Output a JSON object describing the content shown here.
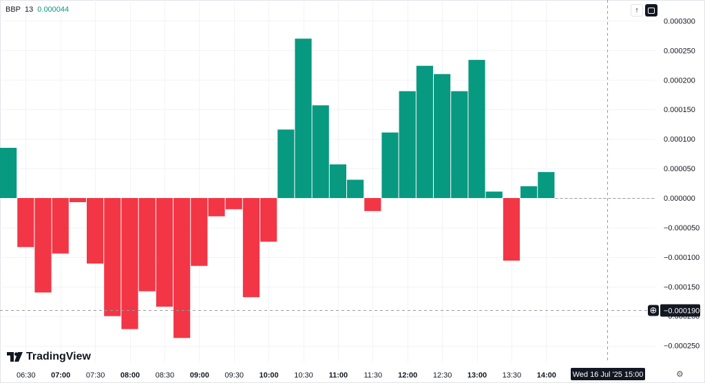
{
  "legend": {
    "symbol": "BBP",
    "period": "13",
    "value": "0.000044"
  },
  "brand": {
    "logo_text": "TradingView",
    "up_color": "#089981",
    "down_color": "#f23645"
  },
  "crosshair": {
    "price_label": "−0.000190",
    "time_label": "Wed 16 Jul '25   15:00"
  },
  "chart_data": {
    "type": "bar",
    "categories": [
      "06:15",
      "06:30",
      "06:45",
      "07:00",
      "07:15",
      "07:30",
      "07:45",
      "08:00",
      "08:15",
      "08:30",
      "08:45",
      "09:00",
      "09:15",
      "09:30",
      "09:45",
      "10:00",
      "10:15",
      "10:30",
      "10:45",
      "11:00",
      "11:15",
      "11:30",
      "11:45",
      "12:00",
      "12:15",
      "12:30",
      "12:45",
      "13:00",
      "13:15",
      "13:30",
      "13:45",
      "14:00"
    ],
    "values": [
      8.5e-05,
      -8.3e-05,
      -0.00016,
      -9.4e-05,
      -7e-06,
      -0.000111,
      -0.0002,
      -0.000222,
      -0.000158,
      -0.000184,
      -0.000237,
      -0.000115,
      -3.1e-05,
      -1.9e-05,
      -0.000168,
      -7.4e-05,
      0.000116,
      0.00027,
      0.000157,
      5.7e-05,
      3.1e-05,
      -2.2e-05,
      0.000111,
      0.000181,
      0.000224,
      0.00021,
      0.000181,
      0.000234,
      1.1e-05,
      -0.000106,
      2e-05,
      4.4e-05
    ],
    "x_tick_labels": [
      "06:30",
      "07:00",
      "07:30",
      "08:00",
      "08:30",
      "09:00",
      "09:30",
      "10:00",
      "10:30",
      "11:00",
      "11:30",
      "12:00",
      "12:30",
      "13:00",
      "13:30",
      "14:00"
    ],
    "bold_x_ticks": [
      "07:00",
      "08:00",
      "09:00",
      "10:00",
      "11:00",
      "12:00",
      "13:00",
      "14:00"
    ],
    "y_tick_labels": [
      "0.000300",
      "0.000250",
      "0.000200",
      "0.000150",
      "0.000100",
      "0.000050",
      "0.000000",
      "−0.000050",
      "−0.000100",
      "−0.000150",
      "−0.000200",
      "−0.000250"
    ],
    "y_ticks": [
      0.0003,
      0.00025,
      0.0002,
      0.00015,
      0.0001,
      5e-05,
      0,
      -5e-05,
      -0.0001,
      -0.00015,
      -0.0002,
      -0.00025
    ],
    "ylim": [
      -0.00027,
      0.00032
    ],
    "last_value": 4.4e-05,
    "crosshair_value": -0.00019,
    "grid": true
  }
}
